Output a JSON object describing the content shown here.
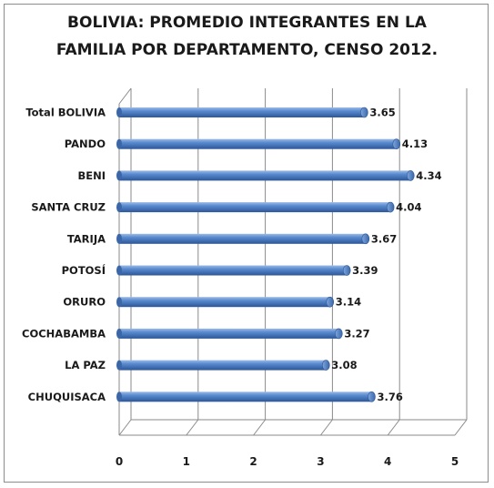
{
  "chart_data": {
    "type": "bar",
    "orientation": "horizontal",
    "title_lines": [
      "BOLIVIA: PROMEDIO INTEGRANTES EN LA",
      "FAMILIA POR DEPARTAMENTO, CENSO 2012."
    ],
    "categories": [
      "Total BOLIVIA",
      "PANDO",
      "BENI",
      "SANTA CRUZ",
      "TARIJA",
      "POTOSÍ",
      "ORURO",
      "COCHABAMBA",
      "LA PAZ",
      "CHUQUISACA"
    ],
    "values": [
      3.65,
      4.13,
      4.34,
      4.04,
      3.67,
      3.39,
      3.14,
      3.27,
      3.08,
      3.76
    ],
    "value_labels": [
      "3.65",
      "4.13",
      "4.34",
      "4.04",
      "3.67",
      "3.39",
      "3.14",
      "3.27",
      "3.08",
      "3.76"
    ],
    "xlim": [
      0,
      5
    ],
    "xticks": [
      "0",
      "1",
      "2",
      "3",
      "4",
      "5"
    ],
    "grid": true,
    "bar_color": "#4f81bd",
    "style": "3d-cylinder"
  }
}
